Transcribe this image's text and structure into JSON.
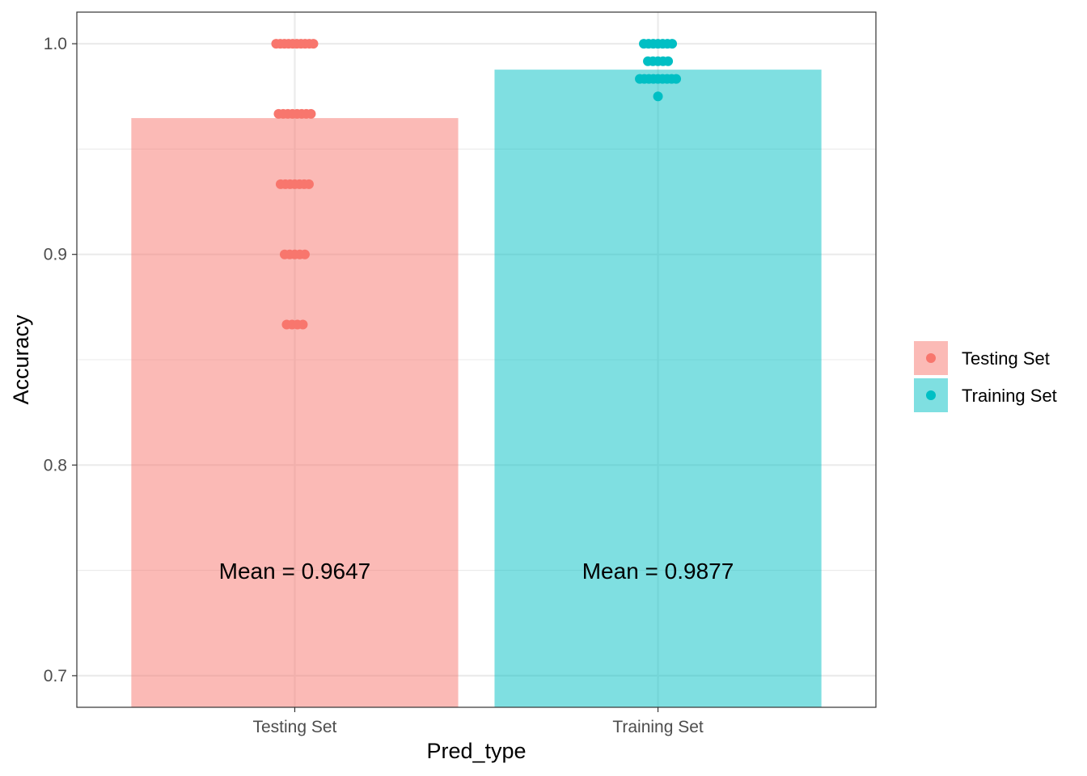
{
  "chart_data": {
    "type": "bar",
    "title": "",
    "xlabel": "Pred_type",
    "ylabel": "Accuracy",
    "categories": [
      "Testing Set",
      "Training Set"
    ],
    "values": [
      0.9647,
      0.9877
    ],
    "ylim": [
      0.685,
      1.015
    ],
    "yticks": [
      0.7,
      0.8,
      0.9,
      1.0
    ],
    "ytick_labels": [
      "0.7",
      "0.8",
      "0.9",
      "1.0"
    ],
    "grid": true,
    "legend": {
      "position": "right",
      "entries": [
        "Testing Set",
        "Training Set"
      ]
    },
    "colors": {
      "Testing Set": "#F8766D",
      "Training Set": "#00BFC4"
    },
    "annotations": [
      "Mean = 0.9647",
      "Mean = 0.9877"
    ],
    "points": [
      {
        "category": "Testing Set",
        "values": [
          1.0,
          1.0,
          1.0,
          1.0,
          1.0,
          1.0,
          1.0,
          1.0,
          1.0,
          1.0,
          0.9667,
          0.9667,
          0.9667,
          0.9667,
          0.9667,
          0.9667,
          0.9667,
          0.9667,
          0.9333,
          0.9333,
          0.9333,
          0.9333,
          0.9333,
          0.9333,
          0.9333,
          0.9,
          0.9,
          0.9,
          0.9,
          0.9,
          0.8667,
          0.8667,
          0.8667,
          0.8667
        ]
      },
      {
        "category": "Training Set",
        "values": [
          1.0,
          1.0,
          1.0,
          1.0,
          1.0,
          1.0,
          1.0,
          0.9917,
          0.9917,
          0.9917,
          0.9917,
          0.9917,
          0.9833,
          0.9833,
          0.9833,
          0.9833,
          0.9833,
          0.9833,
          0.9833,
          0.9833,
          0.9833,
          0.975
        ]
      }
    ]
  }
}
